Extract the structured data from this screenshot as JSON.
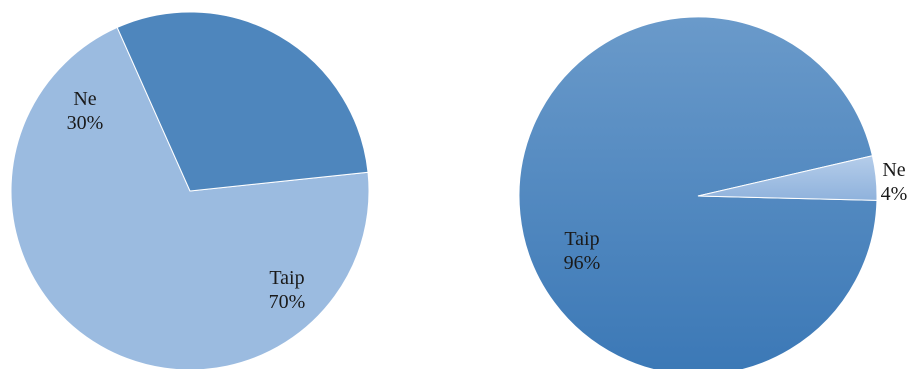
{
  "chart_data": [
    {
      "type": "pie",
      "slices": [
        {
          "label": "Taip",
          "value": 70,
          "value_label": "70%",
          "color": "#9bbbe0"
        },
        {
          "label": "Ne",
          "value": 30,
          "value_label": "30%",
          "color": "#4e86bd"
        }
      ],
      "title": "",
      "legend": "none",
      "labels": "inside"
    },
    {
      "type": "pie",
      "slices": [
        {
          "label": "Taip",
          "value": 96,
          "value_label": "96%",
          "color": "#4a85bf"
        },
        {
          "label": "Ne",
          "value": 4,
          "value_label": "4%",
          "color": "#9dbde2"
        }
      ],
      "title": "",
      "legend": "none",
      "labels": "inside"
    }
  ]
}
